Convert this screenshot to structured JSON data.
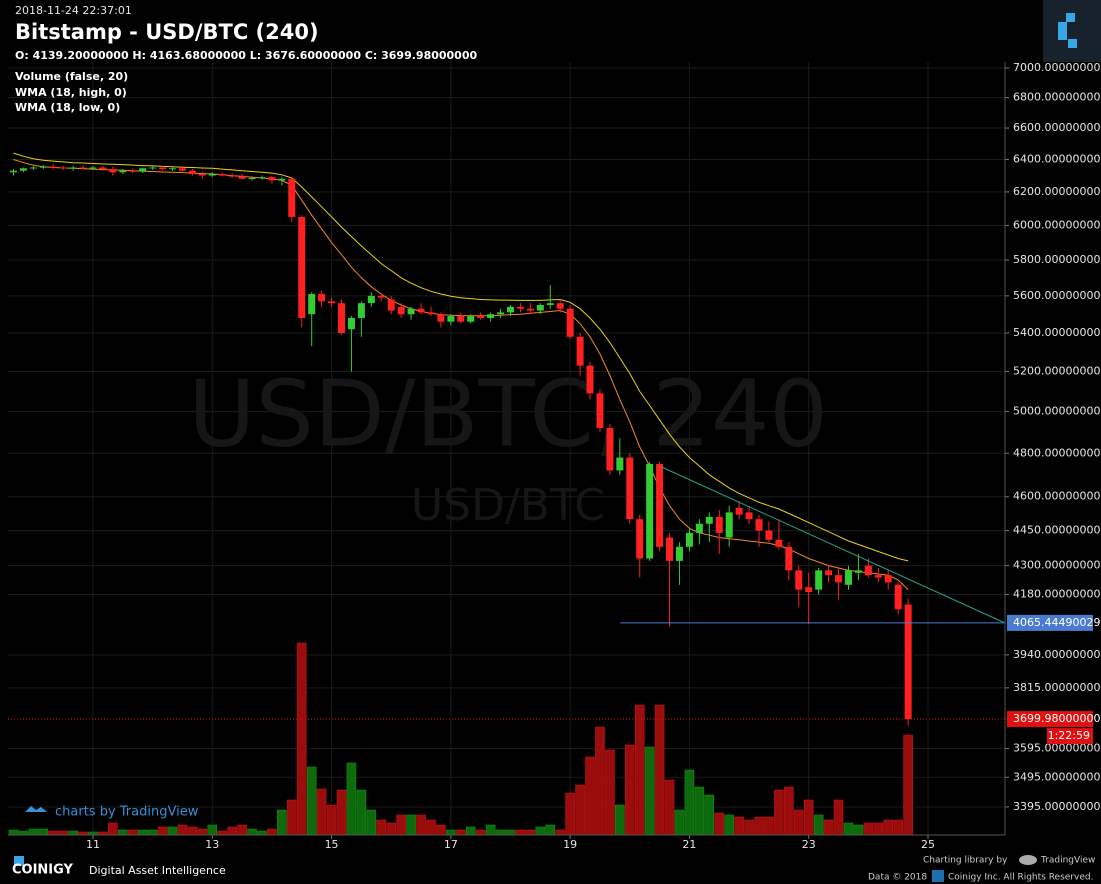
{
  "header": {
    "timestamp": "2018-11-24 22:37:01",
    "title": "Bitstamp - USD/BTC (240)",
    "ohlc": "O: 4139.20000000 H: 4163.68000000 L: 3676.60000000 C: 3699.98000000"
  },
  "footer": {
    "brand": "COINIGY",
    "tagline": "Digital Asset Intelligence",
    "charting": "Charting library by",
    "tradingview": "TradingView",
    "data_credit": "Data © 2018",
    "rights": "Coinigy Inc. All Rights Reserved.",
    "charts_by": "charts by TradingView"
  },
  "chart_data": {
    "type": "candlestick",
    "watermark": "USD/BTC, 240",
    "watermark_sub": "USD/BTC",
    "log_scale": true,
    "grid": true,
    "up_color": "#33cc33",
    "down_color": "#ff2020",
    "xlim": [
      9.575,
      26.291
    ],
    "xticks": [
      11,
      13,
      15,
      17,
      19,
      21,
      23,
      25
    ],
    "ylim": [
      3303,
      7041
    ],
    "yticks": [
      {
        "value": 7000,
        "label": "7000.00000000"
      },
      {
        "value": 6800,
        "label": "6800.00000000"
      },
      {
        "value": 6600,
        "label": "6600.00000000"
      },
      {
        "value": 6400,
        "label": "6400.00000000"
      },
      {
        "value": 6200,
        "label": "6200.00000000"
      },
      {
        "value": 6000,
        "label": "6000.00000000"
      },
      {
        "value": 5800,
        "label": "5800.00000000"
      },
      {
        "value": 5600,
        "label": "5600.00000000"
      },
      {
        "value": 5400,
        "label": "5400.00000000"
      },
      {
        "value": 5200,
        "label": "5200.00000000"
      },
      {
        "value": 5000,
        "label": "5000.00000000"
      },
      {
        "value": 4800,
        "label": "4800.00000000"
      },
      {
        "value": 4600,
        "label": "4600.00000000"
      },
      {
        "value": 4450,
        "label": "4450.00000000"
      },
      {
        "value": 4300,
        "label": "4300.00000000"
      },
      {
        "value": 4180,
        "label": "4180.00000000"
      },
      {
        "value": 3940,
        "label": "3940.00000000"
      },
      {
        "value": 3815,
        "label": "3815.00000000"
      },
      {
        "value": 3595,
        "label": "3595.00000000"
      },
      {
        "value": 3495,
        "label": "3495.00000000"
      },
      {
        "value": 3395,
        "label": "3395.00000000"
      }
    ],
    "x": [
      9.667,
      9.833,
      10,
      10.167,
      10.333,
      10.5,
      10.667,
      10.833,
      11,
      11.167,
      11.333,
      11.5,
      11.667,
      11.833,
      12,
      12.167,
      12.333,
      12.5,
      12.667,
      12.833,
      13,
      13.167,
      13.333,
      13.5,
      13.667,
      13.833,
      14,
      14.167,
      14.333,
      14.5,
      14.667,
      14.833,
      15,
      15.167,
      15.333,
      15.5,
      15.667,
      15.833,
      16,
      16.167,
      16.333,
      16.5,
      16.667,
      16.833,
      17,
      17.167,
      17.333,
      17.5,
      17.667,
      17.833,
      18,
      18.167,
      18.333,
      18.5,
      18.667,
      18.833,
      19,
      19.167,
      19.333,
      19.5,
      19.667,
      19.833,
      20,
      20.167,
      20.333,
      20.5,
      20.667,
      20.833,
      21,
      21.167,
      21.333,
      21.5,
      21.667,
      21.833,
      22,
      22.167,
      22.333,
      22.5,
      22.667,
      22.833,
      23,
      23.167,
      23.333,
      23.5,
      23.667,
      23.833,
      24,
      24.167,
      24.333,
      24.5,
      24.667
    ],
    "open": [
      6320,
      6330,
      6345,
      6350,
      6355,
      6350,
      6345,
      6350,
      6345,
      6350,
      6340,
      6320,
      6330,
      6325,
      6345,
      6350,
      6340,
      6345,
      6330,
      6310,
      6300,
      6310,
      6300,
      6295,
      6280,
      6285,
      6290,
      6270,
      6280,
      6050,
      5500,
      5610,
      5570,
      5560,
      5420,
      5480,
      5560,
      5600,
      5580,
      5540,
      5500,
      5530,
      5510,
      5500,
      5460,
      5490,
      5460,
      5490,
      5480,
      5500,
      5510,
      5540,
      5530,
      5520,
      5550,
      5560,
      5530,
      5380,
      5230,
      5090,
      4920,
      4720,
      4780,
      4500,
      4330,
      4750,
      4420,
      4320,
      4380,
      4440,
      4480,
      4510,
      4420,
      4550,
      4530,
      4500,
      4450,
      4410,
      4380,
      4280,
      4210,
      4200,
      4280,
      4260,
      4220,
      4270,
      4300,
      4260,
      4260,
      4220,
      4139.2
    ],
    "high": [
      6340,
      6350,
      6360,
      6365,
      6370,
      6360,
      6360,
      6365,
      6360,
      6360,
      6355,
      6340,
      6345,
      6350,
      6365,
      6360,
      6355,
      6360,
      6340,
      6325,
      6320,
      6320,
      6315,
      6310,
      6295,
      6300,
      6300,
      6290,
      6290,
      6060,
      5620,
      5630,
      5590,
      5580,
      5490,
      5570,
      5620,
      5610,
      5600,
      5560,
      5540,
      5560,
      5540,
      5510,
      5500,
      5510,
      5500,
      5510,
      5510,
      5530,
      5550,
      5560,
      5560,
      5560,
      5660,
      5580,
      5550,
      5400,
      5250,
      5110,
      4940,
      4870,
      4800,
      4520,
      4760,
      4760,
      4440,
      4400,
      4460,
      4500,
      4530,
      4540,
      4560,
      4580,
      4560,
      4520,
      4490,
      4500,
      4400,
      4300,
      4270,
      4290,
      4300,
      4290,
      4300,
      4350,
      4330,
      4290,
      4280,
      4230,
      4163.68
    ],
    "low": [
      6300,
      6320,
      6335,
      6340,
      6340,
      6335,
      6330,
      6340,
      6335,
      6330,
      6300,
      6310,
      6315,
      6315,
      6335,
      6330,
      6330,
      6325,
      6300,
      6280,
      6290,
      6295,
      6285,
      6275,
      6270,
      6275,
      6250,
      6240,
      6020,
      5430,
      5330,
      5540,
      5540,
      5390,
      5200,
      5380,
      5540,
      5570,
      5500,
      5480,
      5470,
      5500,
      5490,
      5430,
      5440,
      5450,
      5450,
      5470,
      5460,
      5480,
      5490,
      5510,
      5500,
      5500,
      5530,
      5510,
      5370,
      5180,
      5060,
      4900,
      4700,
      4700,
      4480,
      4250,
      4320,
      4360,
      4050,
      4220,
      4360,
      4390,
      4400,
      4350,
      4380,
      4500,
      4480,
      4380,
      4400,
      4370,
      4240,
      4130,
      4060,
      4180,
      4230,
      4160,
      4200,
      4240,
      4250,
      4230,
      4200,
      4100,
      3676.6
    ],
    "close": [
      6330,
      6345,
      6350,
      6355,
      6350,
      6345,
      6350,
      6345,
      6350,
      6340,
      6320,
      6330,
      6325,
      6345,
      6350,
      6340,
      6345,
      6330,
      6310,
      6300,
      6310,
      6300,
      6295,
      6280,
      6285,
      6290,
      6270,
      6280,
      6050,
      5480,
      5610,
      5570,
      5560,
      5400,
      5480,
      5560,
      5600,
      5590,
      5520,
      5500,
      5530,
      5510,
      5500,
      5460,
      5490,
      5460,
      5490,
      5480,
      5500,
      5510,
      5540,
      5530,
      5520,
      5550,
      5560,
      5530,
      5380,
      5230,
      5090,
      4920,
      4720,
      4780,
      4500,
      4330,
      4750,
      4380,
      4320,
      4380,
      4440,
      4480,
      4510,
      4440,
      4530,
      4520,
      4500,
      4450,
      4410,
      4380,
      4280,
      4200,
      4190,
      4280,
      4260,
      4230,
      4280,
      4280,
      4260,
      4250,
      4230,
      4120,
      3699.98
    ],
    "volume": {
      "name": "Volume (false, 20)",
      "up_color": "#0d6b0d",
      "down_color": "#9b0d0d",
      "values": [
        5,
        4,
        6,
        6,
        4,
        4,
        4,
        3,
        3,
        3,
        12,
        5,
        5,
        5,
        5,
        8,
        8,
        10,
        8,
        6,
        10,
        4,
        8,
        10,
        6,
        4,
        6,
        25,
        35,
        192,
        68,
        46,
        30,
        45,
        72,
        45,
        25,
        15,
        12,
        20,
        20,
        20,
        15,
        10,
        5,
        5,
        8,
        5,
        10,
        5,
        5,
        5,
        5,
        8,
        10,
        5,
        42,
        50,
        78,
        108,
        85,
        30,
        90,
        130,
        88,
        130,
        55,
        25,
        65,
        48,
        40,
        22,
        20,
        18,
        15,
        18,
        18,
        45,
        48,
        25,
        35,
        20,
        15,
        35,
        12,
        10,
        12,
        12,
        15,
        15,
        100
      ]
    },
    "lines": [
      {
        "name": "WMA (18, high, 0)",
        "color": "#e8d21d",
        "values": [
          6440,
          6420,
          6405,
          6395,
          6390,
          6385,
          6380,
          6378,
          6375,
          6372,
          6370,
          6368,
          6365,
          6362,
          6360,
          6357,
          6355,
          6352,
          6350,
          6347,
          6345,
          6340,
          6335,
          6330,
          6325,
          6320,
          6315,
          6305,
          6285,
          6230,
          6170,
          6110,
          6050,
          5990,
          5935,
          5880,
          5830,
          5780,
          5740,
          5700,
          5670,
          5645,
          5625,
          5610,
          5598,
          5590,
          5585,
          5580,
          5578,
          5577,
          5576,
          5575,
          5575,
          5575,
          5578,
          5580,
          5565,
          5530,
          5480,
          5420,
          5350,
          5270,
          5190,
          5100,
          5030,
          4960,
          4890,
          4830,
          4780,
          4740,
          4700,
          4670,
          4640,
          4615,
          4595,
          4575,
          4560,
          4545,
          4525,
          4505,
          4485,
          4465,
          4445,
          4425,
          4405,
          4390,
          4375,
          4360,
          4345,
          4330,
          4320
        ]
      },
      {
        "name": "WMA (18, low, 0)",
        "color": "#f08a24",
        "values": [
          6400,
          6380,
          6365,
          6355,
          6350,
          6347,
          6345,
          6342,
          6340,
          6337,
          6335,
          6333,
          6330,
          6327,
          6325,
          6322,
          6320,
          6318,
          6315,
          6312,
          6310,
          6305,
          6300,
          6295,
          6290,
          6285,
          6280,
          6270,
          6240,
          6150,
          6060,
          5980,
          5900,
          5830,
          5760,
          5700,
          5650,
          5610,
          5575,
          5550,
          5530,
          5515,
          5505,
          5498,
          5495,
          5493,
          5492,
          5492,
          5493,
          5495,
          5498,
          5500,
          5505,
          5510,
          5515,
          5520,
          5500,
          5450,
          5380,
          5290,
          5180,
          5060,
          4950,
          4830,
          4740,
          4640,
          4560,
          4500,
          4460,
          4440,
          4430,
          4420,
          4415,
          4410,
          4405,
          4400,
          4395,
          4385,
          4370,
          4350,
          4330,
          4315,
          4300,
          4290,
          4280,
          4275,
          4270,
          4265,
          4260,
          4240,
          4200
        ]
      }
    ],
    "trend_line": {
      "color": "#1fa58c",
      "x": [
        20.5,
        26.291
      ],
      "y": [
        4740,
        4065
      ]
    },
    "hline": {
      "value": 4065.44490029,
      "label": "4065.44490029",
      "x": 19.84,
      "color": "#4a7bd0"
    },
    "last_price": {
      "value": 3699.98,
      "label": "3699.98000000",
      "color": "#e01010"
    },
    "countdown": "1:22:59"
  }
}
